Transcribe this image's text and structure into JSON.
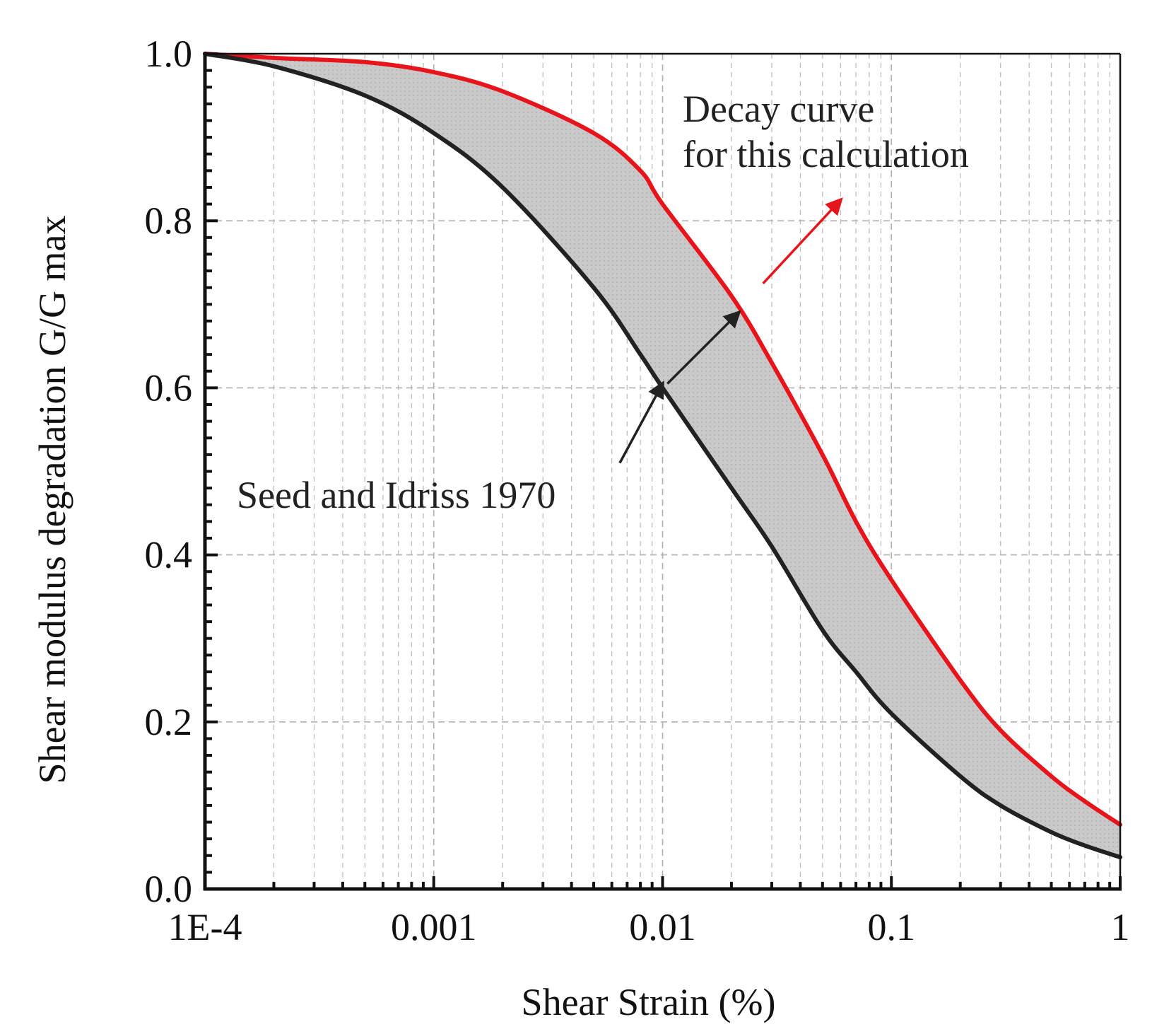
{
  "chart_data": {
    "type": "area",
    "title": "",
    "xlabel": "Shear Strain (%)",
    "ylabel": "Shear modulus degradation G/G max",
    "x_scale": "log",
    "xlim": [
      0.0001,
      1
    ],
    "ylim": [
      0,
      1
    ],
    "grid": true,
    "x_ticks": [
      {
        "value": 0.0001,
        "label": "1E-4"
      },
      {
        "value": 0.001,
        "label": "0.001"
      },
      {
        "value": 0.01,
        "label": "0.01"
      },
      {
        "value": 0.1,
        "label": "0.1"
      },
      {
        "value": 1,
        "label": "1"
      }
    ],
    "y_ticks": [
      {
        "value": 0.0,
        "label": "0.0"
      },
      {
        "value": 0.2,
        "label": "0.2"
      },
      {
        "value": 0.4,
        "label": "0.4"
      },
      {
        "value": 0.6,
        "label": "0.6"
      },
      {
        "value": 0.8,
        "label": "0.8"
      },
      {
        "value": 1.0,
        "label": "1.0"
      }
    ],
    "series": [
      {
        "name": "Decay curve for this calculation",
        "color": "#e8141c",
        "x": [
          0.0001,
          0.0002,
          0.0005,
          0.001,
          0.002,
          0.005,
          0.008,
          0.01,
          0.02,
          0.03,
          0.05,
          0.07,
          0.1,
          0.2,
          0.3,
          0.5,
          0.7,
          1
        ],
        "y": [
          1.0,
          0.995,
          0.99,
          0.978,
          0.955,
          0.905,
          0.86,
          0.82,
          0.71,
          0.63,
          0.52,
          0.44,
          0.37,
          0.25,
          0.19,
          0.135,
          0.105,
          0.077
        ]
      },
      {
        "name": "Seed and Idriss 1970",
        "color": "#222222",
        "x": [
          0.0001,
          0.0002,
          0.0005,
          0.001,
          0.002,
          0.005,
          0.008,
          0.01,
          0.02,
          0.03,
          0.05,
          0.07,
          0.1,
          0.2,
          0.3,
          0.5,
          0.7,
          1
        ],
        "y": [
          1.0,
          0.985,
          0.95,
          0.905,
          0.84,
          0.72,
          0.64,
          0.6,
          0.48,
          0.41,
          0.31,
          0.26,
          0.21,
          0.135,
          0.1,
          0.068,
          0.052,
          0.038
        ]
      }
    ],
    "shaded_band": {
      "between": [
        "Decay curve for this calculation",
        "Seed and Idriss 1970"
      ],
      "color": "#c9c9c9"
    },
    "annotations": [
      {
        "text_lines": [
          "Decay curve",
          "for this calculation"
        ],
        "color": "#222222",
        "arrow_color": "#e8141c",
        "arrow_from": {
          "x": 0.0275,
          "y": 0.725
        },
        "arrow_to": {
          "x": 0.06,
          "y": 0.825
        }
      },
      {
        "text_lines": [
          "Seed and Idriss 1970"
        ],
        "color": "#222222",
        "arrow_color": "#222222",
        "arrows": [
          {
            "from": {
              "x": 0.0065,
              "y": 0.51
            },
            "to": {
              "x": 0.01,
              "y": 0.605
            }
          },
          {
            "from": {
              "x": 0.0105,
              "y": 0.605
            },
            "to": {
              "x": 0.0215,
              "y": 0.69
            }
          }
        ]
      }
    ]
  }
}
